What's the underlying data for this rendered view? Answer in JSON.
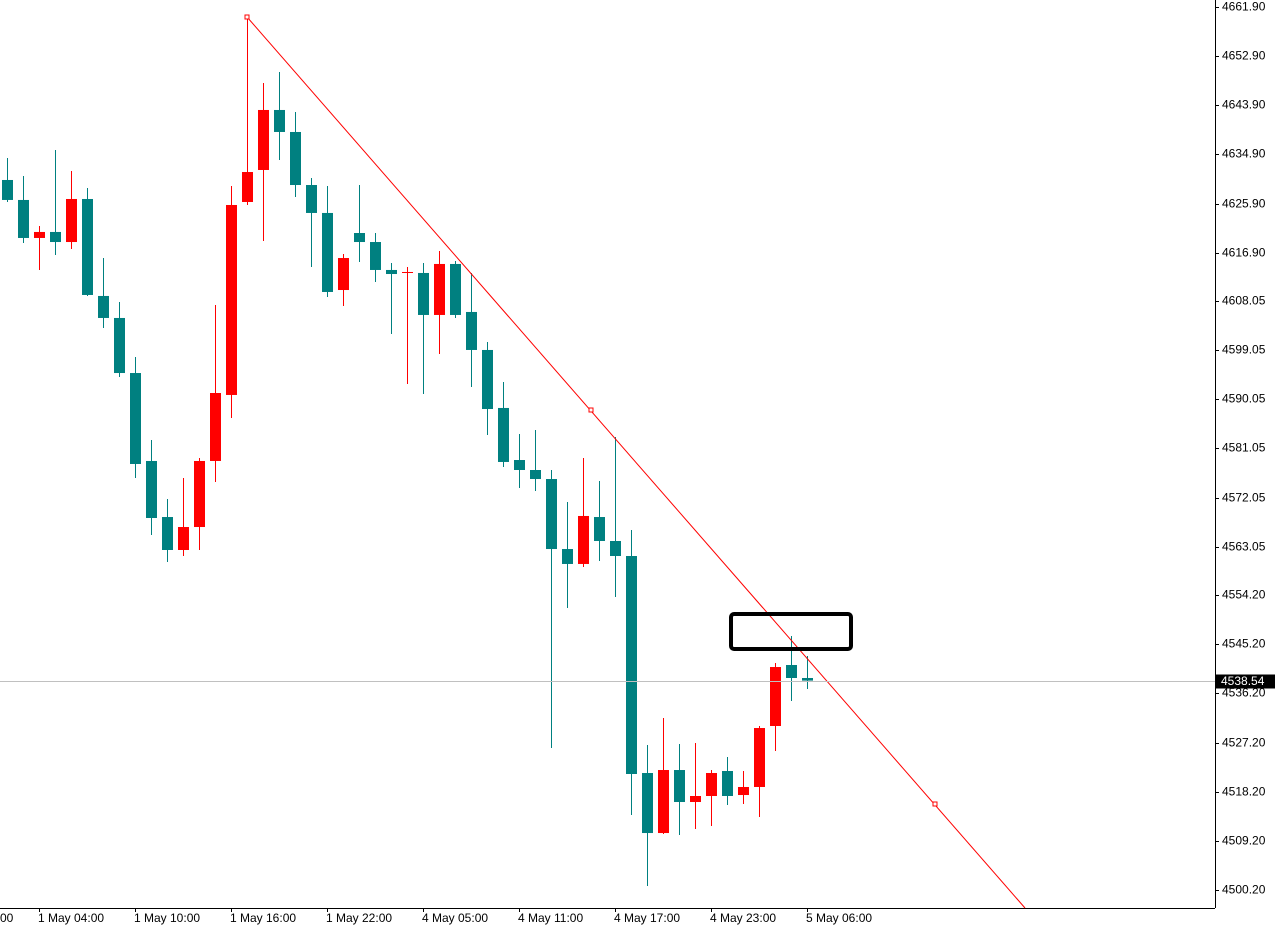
{
  "chart_data": {
    "type": "candlestick",
    "up_color": "#ff0000",
    "down_color": "#008080",
    "categories": [
      null,
      null,
      "1 May 04:00",
      null,
      null,
      null,
      null,
      null,
      "1 May 10:00",
      null,
      null,
      null,
      null,
      null,
      "1 May 16:00",
      null,
      null,
      null,
      null,
      null,
      "1 May 22:00",
      null,
      null,
      null,
      null,
      null,
      "4 May 05:00",
      null,
      null,
      null,
      null,
      null,
      "4 May 11:00",
      null,
      null,
      null,
      null,
      null,
      "4 May 17:00",
      null,
      null,
      null,
      null,
      null,
      "4 May 23:00",
      null,
      null,
      null,
      null,
      null,
      "5 May 06:00"
    ],
    "x_edge_label": "00",
    "open": [
      4630.22,
      4626.56,
      4619.6,
      4620.7,
      4618.86,
      4626.74,
      4608.98,
      4604.95,
      4594.87,
      4578.76,
      4568.5,
      4562.46,
      4566.67,
      4578.76,
      4590.85,
      4626.19,
      4632.05,
      4643.04,
      4639.01,
      4629.3,
      4624.18,
      4610.07,
      4620.51,
      4618.86,
      4613.74,
      4613.19,
      4613.19,
      4605.5,
      4614.84,
      4606.05,
      4599.09,
      4588.47,
      4578.94,
      4577.11,
      4575.46,
      4562.64,
      4559.9,
      4568.5,
      4564.11,
      4561.36,
      4521.62,
      4510.63,
      4522.17,
      4516.31,
      4517.41,
      4521.99,
      4517.59,
      4519.06,
      4530.23,
      4541.4,
      4539.02
    ],
    "high": [
      4634.25,
      4630.95,
      4621.79,
      4635.71,
      4631.87,
      4628.75,
      4615.93,
      4607.88,
      4597.8,
      4582.6,
      4571.8,
      4575.65,
      4579.31,
      4607.33,
      4629.12,
      4660.07,
      4647.98,
      4650.0,
      4642.67,
      4630.58,
      4629.12,
      4616.67,
      4629.3,
      4620.51,
      4615.02,
      4614.29,
      4615.02,
      4617.22,
      4615.38,
      4613.19,
      4600.55,
      4593.23,
      4583.7,
      4584.44,
      4577.11,
      4571.25,
      4579.31,
      4575.1,
      4583.15,
      4566.12,
      4526.75,
      4531.7,
      4526.93,
      4527.12,
      4522.17,
      4524.55,
      4521.99,
      4530.23,
      4541.77,
      4546.71,
      4543.05
    ],
    "low": [
      4626.19,
      4618.68,
      4613.74,
      4616.48,
      4617.58,
      4608.98,
      4603.12,
      4594.14,
      4575.65,
      4565.21,
      4560.26,
      4561.36,
      4562.46,
      4574.91,
      4586.63,
      4625.64,
      4619.05,
      4633.88,
      4627.11,
      4614.29,
      4608.79,
      4607.14,
      4615.2,
      4611.54,
      4602.02,
      4592.86,
      4591.03,
      4598.35,
      4604.95,
      4592.31,
      4583.52,
      4577.66,
      4573.81,
      4573.27,
      4526.2,
      4551.84,
      4559.35,
      4560.45,
      4553.85,
      4513.93,
      4500.93,
      4510.45,
      4510.27,
      4511.37,
      4511.92,
      4515.76,
      4515.95,
      4513.56,
      4525.65,
      4534.81,
      4537.01
    ],
    "close": [
      4626.56,
      4619.6,
      4620.7,
      4618.86,
      4626.74,
      4609.16,
      4604.95,
      4594.87,
      4578.21,
      4568.32,
      4562.46,
      4566.67,
      4578.76,
      4591.21,
      4625.64,
      4631.68,
      4643.04,
      4639.01,
      4629.3,
      4624.18,
      4609.71,
      4615.93,
      4618.86,
      4613.74,
      4613.0,
      4613.37,
      4605.5,
      4614.84,
      4605.5,
      4599.09,
      4588.28,
      4578.58,
      4577.11,
      4575.46,
      4562.64,
      4559.9,
      4568.69,
      4564.11,
      4561.36,
      4521.44,
      4510.63,
      4522.17,
      4516.31,
      4517.41,
      4521.62,
      4517.41,
      4519.06,
      4529.86,
      4541.03,
      4539.02,
      4538.54
    ],
    "last_price": 4538.54,
    "ylim": [
      4496.9,
      4663.18
    ],
    "yticks": [
      {
        "value": 4661.9,
        "label": "4661.90"
      },
      {
        "value": 4652.9,
        "label": "4652.90"
      },
      {
        "value": 4643.9,
        "label": "4643.90"
      },
      {
        "value": 4634.9,
        "label": "4634.90"
      },
      {
        "value": 4625.9,
        "label": "4625.90"
      },
      {
        "value": 4616.9,
        "label": "4616.90"
      },
      4608.05,
      4599.05,
      4590.05,
      4581.05,
      4572.05,
      4563.05,
      {
        "value": 4554.2,
        "label": "4554.20"
      },
      {
        "value": 4545.2,
        "label": "4545.20"
      },
      {
        "value": 4536.2,
        "label": "4536.20"
      },
      {
        "value": 4527.2,
        "label": "4527.20"
      },
      {
        "value": 4518.2,
        "label": "4518.20"
      },
      {
        "value": 4509.2,
        "label": "4509.20"
      },
      {
        "value": 4500.2,
        "label": "4500.20"
      }
    ]
  }
}
